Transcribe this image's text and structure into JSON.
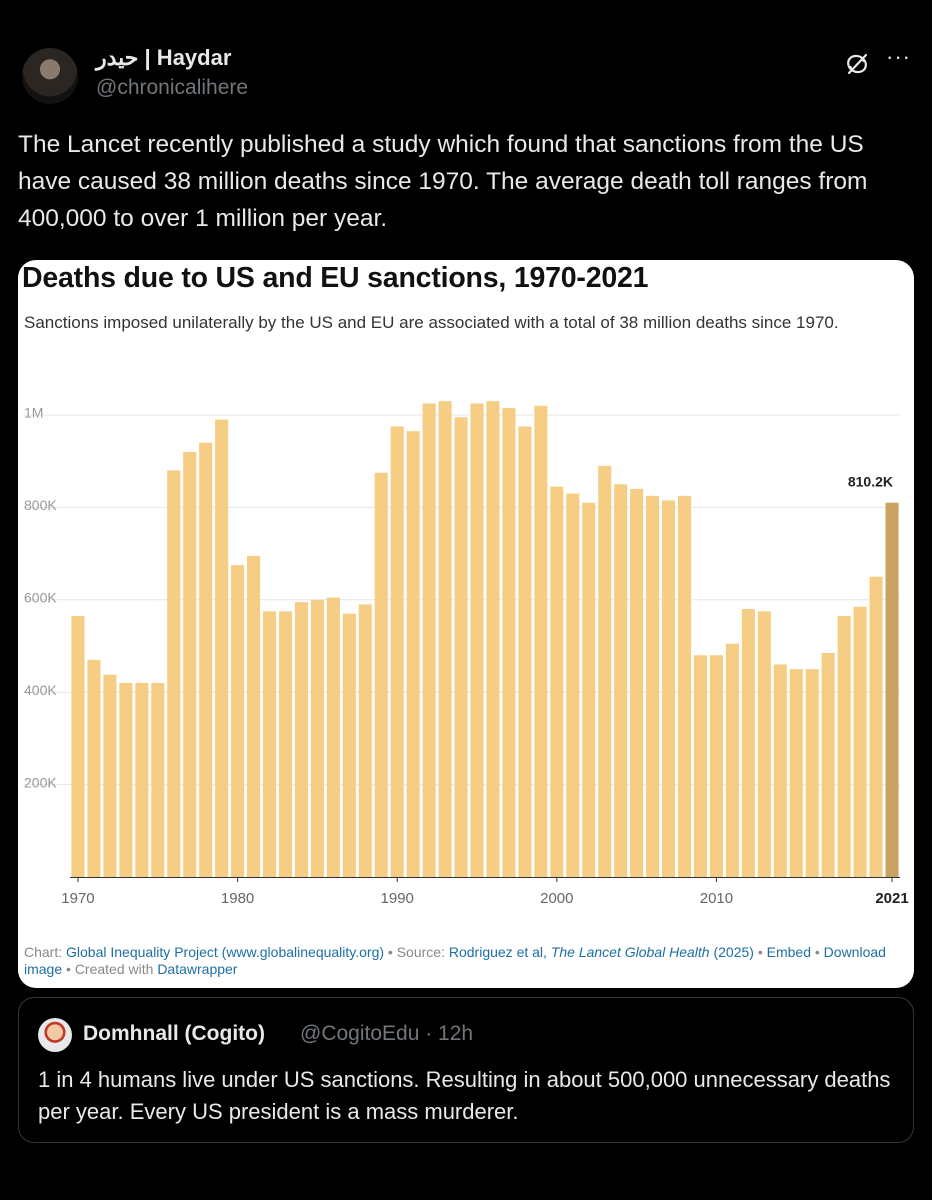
{
  "author": {
    "display_name": "حيدر | Haydar",
    "handle": "@chronicalihere"
  },
  "icons": {
    "avatar": "profile-photo",
    "grok": "grok-icon",
    "more": "more-horizontal-icon"
  },
  "more_glyph": "···",
  "tweet_text": "The Lancet recently published a study which found that sanctions from the US have caused 38 million deaths since 1970. The average death toll ranges from 400,000 to over 1 million per year.",
  "chart": {
    "title": "Deaths due to US and EU sanctions, 1970-2021",
    "subtitle": "Sanctions imposed unilaterally by the US and EU are associated with a total of 38 million deaths since 1970.",
    "footer": {
      "chart_prefix": "Chart: ",
      "chart_source": "Global Inequality Project (www.globalinequality.org)",
      "sep1": " • Source: ",
      "source_text": "Rodriguez et al, ",
      "source_journal": "The Lancet Global Health",
      "source_year": " (2025)",
      "sep2": " • ",
      "embed": "Embed",
      "sep3": " • ",
      "download": "Download image",
      "sep4": " • Created with ",
      "datawrapper": "Datawrapper"
    }
  },
  "chart_data": {
    "type": "bar",
    "title": "Deaths due to US and EU sanctions, 1970-2021",
    "subtitle": "Sanctions imposed unilaterally by the US and EU are associated with a total of 38 million deaths since 1970.",
    "x": [
      1970,
      1971,
      1972,
      1973,
      1974,
      1975,
      1976,
      1977,
      1978,
      1979,
      1980,
      1981,
      1982,
      1983,
      1984,
      1985,
      1986,
      1987,
      1988,
      1989,
      1990,
      1991,
      1992,
      1993,
      1994,
      1995,
      1996,
      1997,
      1998,
      1999,
      2000,
      2001,
      2002,
      2003,
      2004,
      2005,
      2006,
      2007,
      2008,
      2009,
      2010,
      2011,
      2012,
      2013,
      2014,
      2015,
      2016,
      2017,
      2018,
      2019,
      2020,
      2021
    ],
    "values": [
      565000,
      470000,
      438000,
      420000,
      420000,
      420000,
      880000,
      920000,
      940000,
      990000,
      675000,
      695000,
      575000,
      575000,
      595000,
      600000,
      605000,
      570000,
      590000,
      875000,
      975000,
      965000,
      1025000,
      1030000,
      995000,
      1025000,
      1030000,
      1015000,
      975000,
      1020000,
      845000,
      830000,
      810000,
      890000,
      850000,
      840000,
      825000,
      815000,
      825000,
      480000,
      480000,
      505000,
      580000,
      575000,
      460000,
      450000,
      450000,
      485000,
      565000,
      585000,
      650000,
      810200
    ],
    "ylim": [
      0,
      1000000
    ],
    "y_ticks": [
      {
        "value": 200000,
        "label": "200K"
      },
      {
        "value": 400000,
        "label": "400K"
      },
      {
        "value": 600000,
        "label": "600K"
      },
      {
        "value": 800000,
        "label": "800K"
      },
      {
        "value": 1000000,
        "label": "1M"
      }
    ],
    "x_ticks": [
      {
        "value": 1970,
        "label": "1970",
        "bold": false
      },
      {
        "value": 1980,
        "label": "1980",
        "bold": false
      },
      {
        "value": 1990,
        "label": "1990",
        "bold": false
      },
      {
        "value": 2000,
        "label": "2000",
        "bold": false
      },
      {
        "value": 2010,
        "label": "2010",
        "bold": false
      },
      {
        "value": 2021,
        "label": "2021",
        "bold": true
      }
    ],
    "highlight": {
      "year": 2021,
      "label": "810.2K"
    },
    "colors": {
      "bar": "#f6cd84",
      "highlight": "#c9a264",
      "grid": "#e6e6e6",
      "tick": "#999999"
    },
    "grid": true
  },
  "quote": {
    "display_name": "Domhnall (Cogito)",
    "meta": "@CogitoEdu · 12h",
    "text": "1 in 4 humans live under US sanctions. Resulting in about 500,000 unnecessary deaths per year. Every US president is a mass murderer."
  }
}
